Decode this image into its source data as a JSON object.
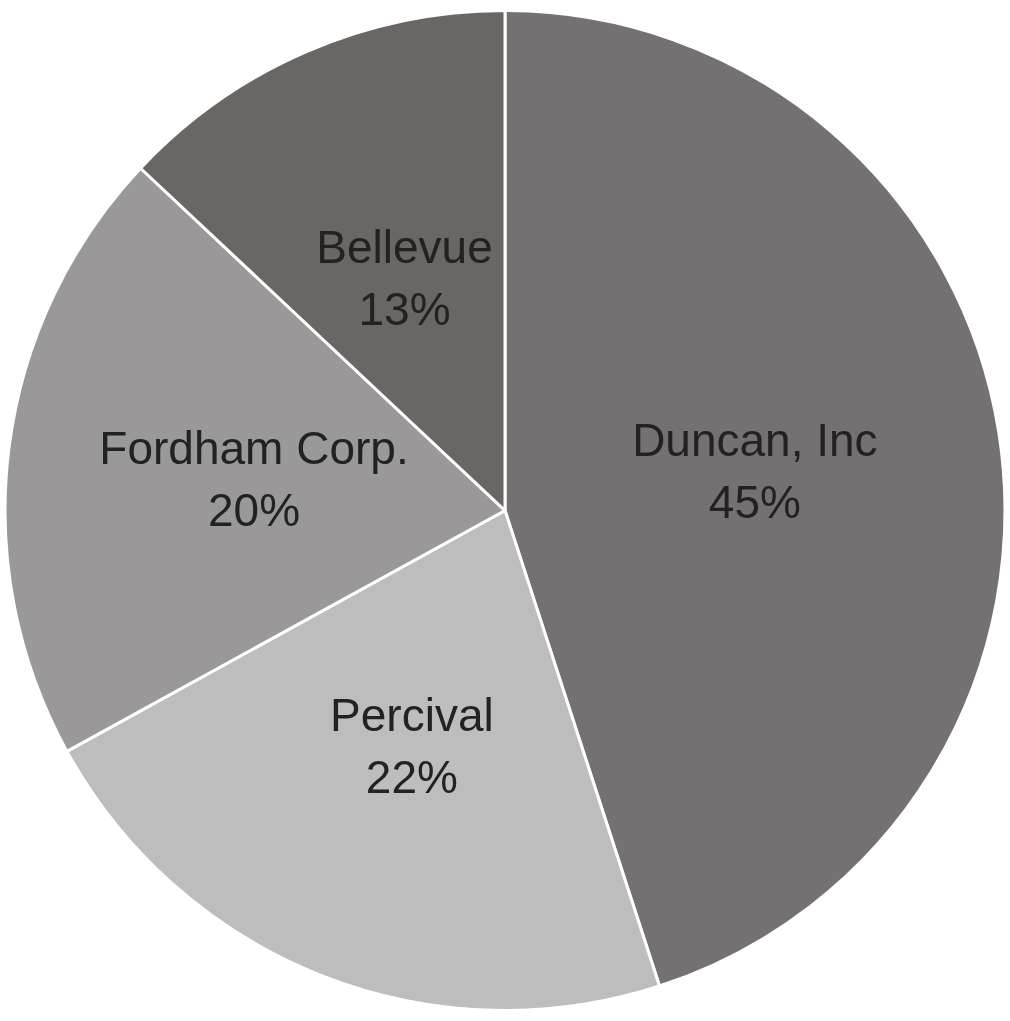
{
  "chart_data": {
    "type": "pie",
    "categories": [
      "Duncan, Inc",
      "Percival",
      "Fordham Corp.",
      "Bellevue"
    ],
    "values": [
      45,
      22,
      20,
      13
    ],
    "colors": [
      "#757172",
      "#bdbdbd",
      "#9a9899",
      "#6a6664"
    ],
    "value_labels": [
      "45%",
      "22%",
      "20%",
      "13%"
    ]
  }
}
